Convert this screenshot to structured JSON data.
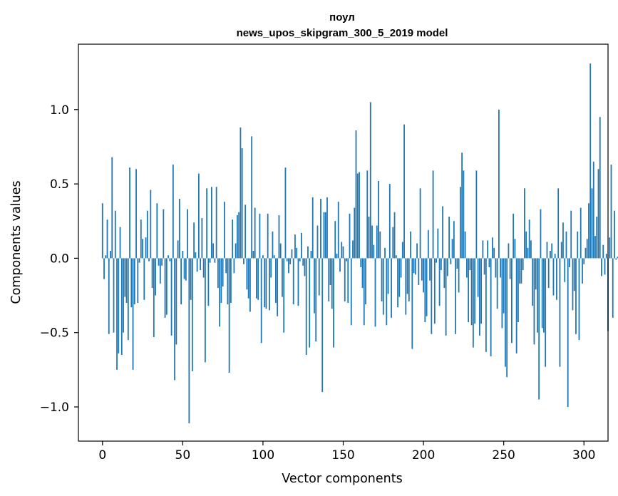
{
  "chart_data": {
    "type": "bar",
    "title_line1": "поул",
    "title_line2": "news_upos_skipgram_300_5_2019 model",
    "xlabel": "Vector components",
    "ylabel": "Components values",
    "xlim": [
      -15,
      315
    ],
    "ylim": [
      -1.23,
      1.44
    ],
    "xticks": [
      0,
      50,
      100,
      150,
      200,
      250,
      300
    ],
    "xtick_labels": [
      "0",
      "50",
      "100",
      "150",
      "200",
      "250",
      "300"
    ],
    "yticks": [
      -1.0,
      -0.5,
      0.0,
      0.5,
      1.0
    ],
    "ytick_labels": [
      "−1.0",
      "−0.5",
      "0.0",
      "0.5",
      "1.0"
    ],
    "bar_color": "#1f77b4",
    "grid": false,
    "values": [
      0.37,
      -0.14,
      0.02,
      0.26,
      -0.51,
      0.05,
      0.68,
      -0.5,
      0.32,
      -0.75,
      -0.64,
      0.21,
      -0.65,
      -0.5,
      -0.26,
      -0.3,
      -0.55,
      0.61,
      -0.33,
      -0.75,
      -0.31,
      0.6,
      -0.3,
      -0.03,
      0.26,
      0.13,
      -0.28,
      0.14,
      0.32,
      -0.02,
      0.46,
      -0.2,
      -0.53,
      -0.25,
      0.37,
      -0.05,
      -0.17,
      -0.05,
      0.33,
      -0.4,
      -0.38,
      0.02,
      -0.02,
      -0.52,
      0.63,
      -0.82,
      -0.58,
      0.12,
      0.4,
      -0.31,
      0.05,
      -0.14,
      -0.15,
      0.33,
      -1.11,
      -0.28,
      -0.76,
      0.24,
      0.04,
      -0.09,
      0.57,
      -0.08,
      0.27,
      -0.13,
      -0.7,
      0.47,
      -0.32,
      -0.03,
      0.48,
      0.1,
      -0.03,
      0.48,
      -0.2,
      -0.46,
      -0.3,
      -0.19,
      0.38,
      -0.1,
      -0.31,
      -0.77,
      -0.3,
      0.26,
      -0.1,
      0.1,
      0.29,
      0.31,
      0.88,
      0.74,
      -0.04,
      0.36,
      -0.21,
      -0.27,
      -0.36,
      0.82,
      0.05,
      0.34,
      -0.27,
      -0.28,
      0.3,
      -0.57,
      0.02,
      -0.33,
      -0.34,
      0.3,
      -0.35,
      -0.13,
      0.18,
      0.02,
      -0.3,
      -0.39,
      0.29,
      0.1,
      -0.26,
      -0.5,
      0.61,
      -0.02,
      -0.1,
      -0.04,
      0.06,
      -0.31,
      0.16,
      0.07,
      -0.32,
      -0.02,
      0.17,
      -0.05,
      -0.12,
      -0.65,
      0.08,
      -0.6,
      0.05,
      0.41,
      -0.37,
      -0.56,
      0.22,
      -0.25,
      0.4,
      -0.9,
      0.31,
      0.31,
      0.41,
      -0.29,
      -0.18,
      -0.34,
      -0.6,
      0.25,
      0.03,
      0.38,
      -0.09,
      0.11,
      0.08,
      -0.29,
      -0.02,
      -0.3,
      0.3,
      -0.45,
      0.12,
      0.34,
      0.86,
      0.57,
      0.58,
      -0.06,
      -0.2,
      -0.45,
      -0.31,
      0.59,
      0.28,
      1.05,
      0.22,
      0.09,
      -0.46,
      0.22,
      0.52,
      0.18,
      -0.29,
      -0.38,
      0.07,
      -0.45,
      -0.24,
      0.5,
      -0.4,
      0.21,
      0.31,
      0.02,
      -0.33,
      -0.26,
      -0.13,
      0.11,
      0.9,
      -0.38,
      -0.24,
      -0.29,
      0.18,
      -0.61,
      -0.1,
      -0.11,
      0.1,
      -0.18,
      0.47,
      -0.15,
      -0.23,
      -0.43,
      -0.39,
      0.19,
      -0.15,
      -0.51,
      0.59,
      -0.44,
      -0.03,
      0.2,
      -0.32,
      -0.08,
      0.35,
      -0.2,
      -0.52,
      -0.12,
      0.28,
      -0.04,
      0.13,
      0.25,
      -0.51,
      -0.07,
      -0.23,
      0.48,
      0.71,
      0.59,
      0.18,
      -0.13,
      -0.43,
      -0.08,
      -0.45,
      -0.6,
      -0.44,
      0.59,
      -0.26,
      -0.52,
      -0.44,
      0.12,
      -0.11,
      -0.63,
      0.12,
      -0.06,
      -0.66,
      0.14,
      0.07,
      -0.13,
      -0.34,
      1.0,
      -0.13,
      -0.47,
      -0.37,
      -0.73,
      -0.8,
      0.1,
      -0.14,
      -0.57,
      0.3,
      0.13,
      -0.64,
      -0.43,
      -0.17,
      -0.17,
      -0.08,
      0.47,
      0.18,
      0.07,
      0.26,
      0.12,
      -0.32,
      -0.58,
      -0.21,
      -0.5,
      -0.95,
      0.33,
      -0.47,
      -0.5,
      -0.73,
      0.11,
      -0.2,
      0.05,
      0.1,
      -0.25,
      0.03,
      -0.28,
      0.47,
      -0.73,
      0.11,
      0.24,
      -0.16,
      0.18,
      -1.0,
      -0.06,
      0.32,
      -0.35,
      -0.22,
      -0.51,
      0.18,
      -0.55,
      0.34,
      -0.17,
      -0.04,
      0.07,
      0.13,
      0.37,
      1.31,
      0.47,
      0.65,
      0.15,
      0.28,
      0.6,
      0.95,
      -0.12,
      0.09,
      -0.11,
      0.03,
      -0.49,
      0.14,
      0.63,
      -0.4,
      0.32,
      -0.01,
      0.01
    ]
  }
}
